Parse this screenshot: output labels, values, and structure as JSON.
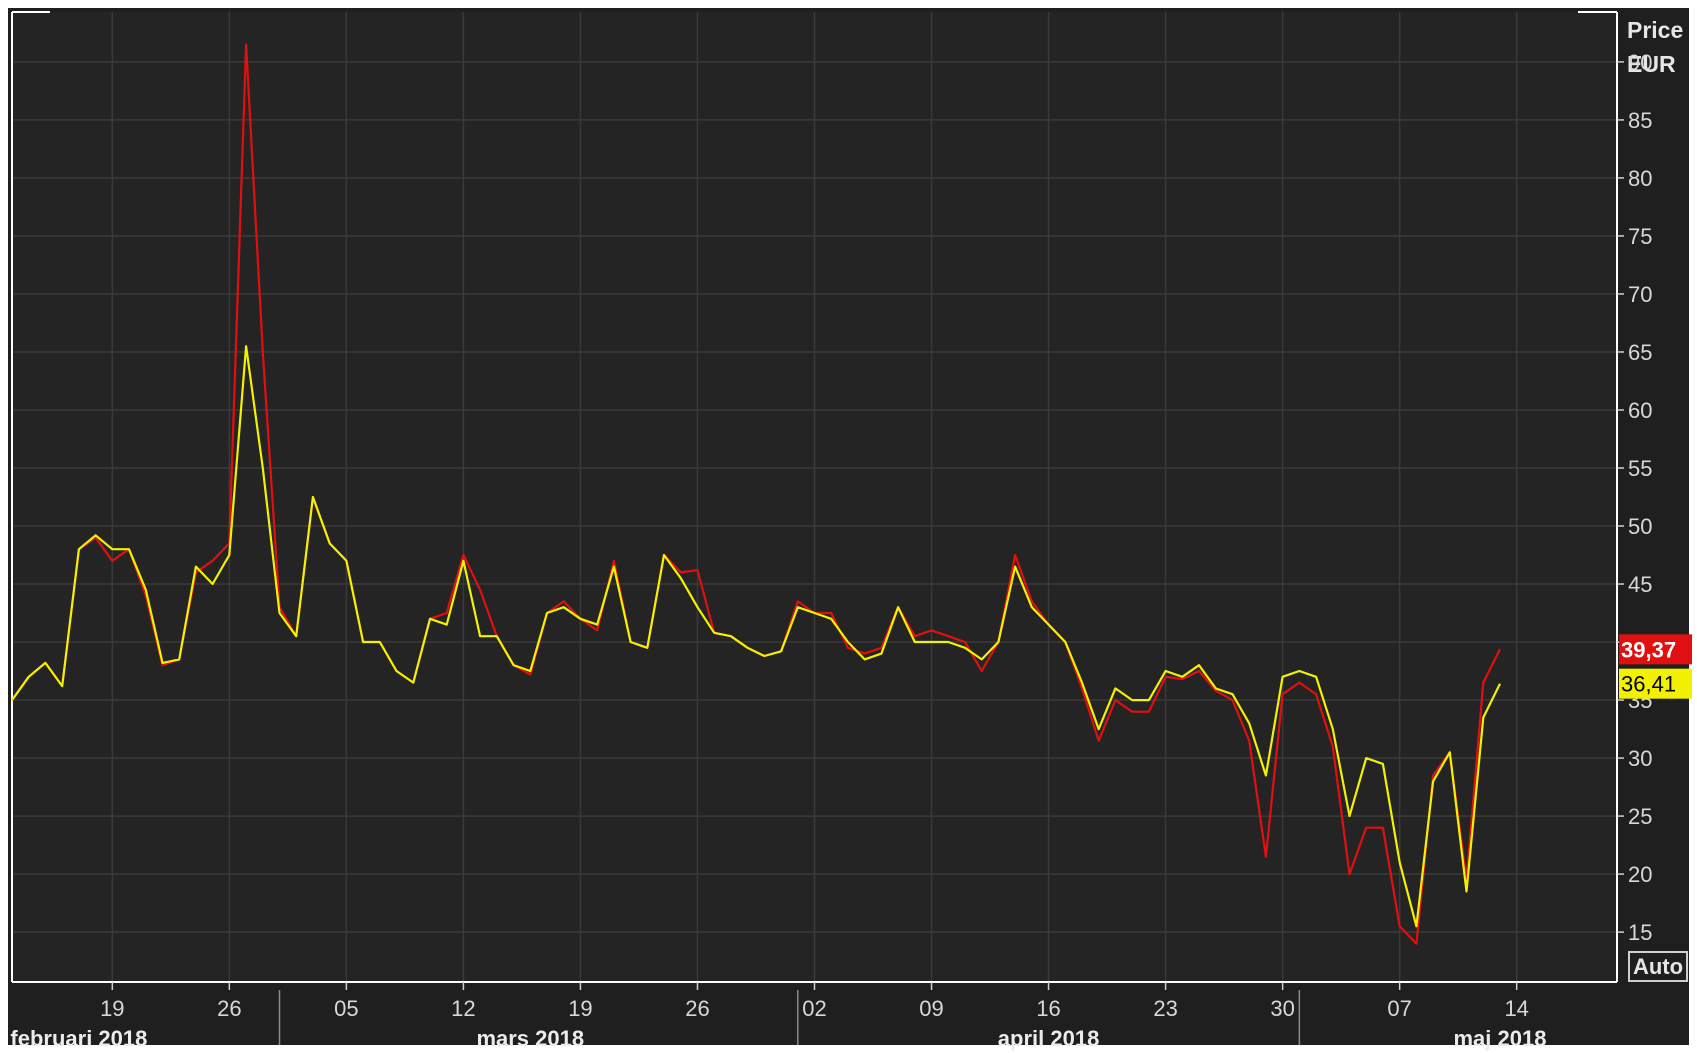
{
  "chart_data": {
    "type": "line",
    "title": "",
    "ylabel_line1": "Price",
    "ylabel_line2": "EUR",
    "ylim": [
      10.7,
      94.3
    ],
    "y_ticks": [
      15,
      20,
      25,
      30,
      35,
      40,
      45,
      50,
      55,
      60,
      65,
      70,
      75,
      80,
      85,
      90
    ],
    "x_day_ticks": [
      "19",
      "26",
      "05",
      "12",
      "19",
      "26",
      "02",
      "09",
      "16",
      "23",
      "30",
      "07",
      "14"
    ],
    "x_month_labels": [
      "februari 2018",
      "mars 2018",
      "april 2018",
      "maj 2018"
    ],
    "x_range": [
      "2018-02-13",
      "2018-05-20"
    ],
    "auto_label": "Auto",
    "grid": true,
    "series": [
      {
        "color": "#e01010",
        "last_label": "39,37",
        "points": [
          [
            "2018-02-13",
            35.0
          ],
          [
            "2018-02-14",
            37.0
          ],
          [
            "2018-02-15",
            38.2
          ],
          [
            "2018-02-16",
            36.2
          ],
          [
            "2018-02-17",
            48.0
          ],
          [
            "2018-02-18",
            49.0
          ],
          [
            "2018-02-19",
            47.0
          ],
          [
            "2018-02-20",
            48.0
          ],
          [
            "2018-02-21",
            44.0
          ],
          [
            "2018-02-22",
            38.0
          ],
          [
            "2018-02-23",
            38.5
          ],
          [
            "2018-02-24",
            46.0
          ],
          [
            "2018-02-25",
            47.0
          ],
          [
            "2018-02-26",
            48.5
          ],
          [
            "2018-02-27",
            91.5
          ],
          [
            "2018-02-28",
            65.0
          ],
          [
            "2018-03-01",
            43.0
          ],
          [
            "2018-03-02",
            40.5
          ],
          [
            "2018-03-03",
            52.5
          ],
          [
            "2018-03-04",
            48.5
          ],
          [
            "2018-03-05",
            47.0
          ],
          [
            "2018-03-06",
            40.0
          ],
          [
            "2018-03-07",
            40.0
          ],
          [
            "2018-03-08",
            37.5
          ],
          [
            "2018-03-09",
            36.5
          ],
          [
            "2018-03-10",
            42.0
          ],
          [
            "2018-03-11",
            42.5
          ],
          [
            "2018-03-12",
            47.5
          ],
          [
            "2018-03-13",
            44.5
          ],
          [
            "2018-03-14",
            40.5
          ],
          [
            "2018-03-15",
            38.0
          ],
          [
            "2018-03-16",
            37.2
          ],
          [
            "2018-03-17",
            42.5
          ],
          [
            "2018-03-18",
            43.5
          ],
          [
            "2018-03-19",
            42.0
          ],
          [
            "2018-03-20",
            41.0
          ],
          [
            "2018-03-21",
            47.0
          ],
          [
            "2018-03-22",
            40.0
          ],
          [
            "2018-03-23",
            39.5
          ],
          [
            "2018-03-24",
            47.5
          ],
          [
            "2018-03-25",
            46.0
          ],
          [
            "2018-03-26",
            46.2
          ],
          [
            "2018-03-27",
            40.8
          ],
          [
            "2018-03-28",
            40.5
          ],
          [
            "2018-03-29",
            39.5
          ],
          [
            "2018-03-30",
            38.8
          ],
          [
            "2018-03-31",
            39.2
          ],
          [
            "2018-04-01",
            43.5
          ],
          [
            "2018-04-02",
            42.5
          ],
          [
            "2018-04-03",
            42.5
          ],
          [
            "2018-04-04",
            39.5
          ],
          [
            "2018-04-05",
            39.0
          ],
          [
            "2018-04-06",
            39.5
          ],
          [
            "2018-04-07",
            43.0
          ],
          [
            "2018-04-08",
            40.5
          ],
          [
            "2018-04-09",
            41.0
          ],
          [
            "2018-04-10",
            40.5
          ],
          [
            "2018-04-11",
            40.0
          ],
          [
            "2018-04-12",
            37.5
          ],
          [
            "2018-04-13",
            40.0
          ],
          [
            "2018-04-14",
            47.5
          ],
          [
            "2018-04-15",
            43.5
          ],
          [
            "2018-04-16",
            41.5
          ],
          [
            "2018-04-17",
            40.0
          ],
          [
            "2018-04-18",
            36.0
          ],
          [
            "2018-04-19",
            31.5
          ],
          [
            "2018-04-20",
            35.0
          ],
          [
            "2018-04-21",
            34.0
          ],
          [
            "2018-04-22",
            34.0
          ],
          [
            "2018-04-23",
            37.0
          ],
          [
            "2018-04-24",
            36.8
          ],
          [
            "2018-04-25",
            37.5
          ],
          [
            "2018-04-26",
            35.8
          ],
          [
            "2018-04-27",
            35.0
          ],
          [
            "2018-04-28",
            31.5
          ],
          [
            "2018-04-29",
            21.5
          ],
          [
            "2018-04-30",
            35.5
          ],
          [
            "2018-05-01",
            36.5
          ],
          [
            "2018-05-02",
            35.5
          ],
          [
            "2018-05-03",
            31.0
          ],
          [
            "2018-05-04",
            20.0
          ],
          [
            "2018-05-05",
            24.0
          ],
          [
            "2018-05-06",
            24.0
          ],
          [
            "2018-05-07",
            15.5
          ],
          [
            "2018-05-08",
            14.0
          ],
          [
            "2018-05-09",
            28.5
          ],
          [
            "2018-05-10",
            30.5
          ],
          [
            "2018-05-11",
            19.5
          ],
          [
            "2018-05-12",
            36.5
          ],
          [
            "2018-05-13",
            39.37
          ]
        ]
      },
      {
        "color": "#f2f200",
        "last_label": "36,41",
        "points": [
          [
            "2018-02-13",
            35.0
          ],
          [
            "2018-02-14",
            37.0
          ],
          [
            "2018-02-15",
            38.2
          ],
          [
            "2018-02-16",
            36.2
          ],
          [
            "2018-02-17",
            48.0
          ],
          [
            "2018-02-18",
            49.2
          ],
          [
            "2018-02-19",
            48.0
          ],
          [
            "2018-02-20",
            48.0
          ],
          [
            "2018-02-21",
            44.5
          ],
          [
            "2018-02-22",
            38.2
          ],
          [
            "2018-02-23",
            38.5
          ],
          [
            "2018-02-24",
            46.5
          ],
          [
            "2018-02-25",
            45.0
          ],
          [
            "2018-02-26",
            47.5
          ],
          [
            "2018-02-27",
            65.5
          ],
          [
            "2018-02-28",
            55.0
          ],
          [
            "2018-03-01",
            42.5
          ],
          [
            "2018-03-02",
            40.5
          ],
          [
            "2018-03-03",
            52.5
          ],
          [
            "2018-03-04",
            48.5
          ],
          [
            "2018-03-05",
            47.0
          ],
          [
            "2018-03-06",
            40.0
          ],
          [
            "2018-03-07",
            40.0
          ],
          [
            "2018-03-08",
            37.5
          ],
          [
            "2018-03-09",
            36.5
          ],
          [
            "2018-03-10",
            42.0
          ],
          [
            "2018-03-11",
            41.5
          ],
          [
            "2018-03-12",
            47.0
          ],
          [
            "2018-03-13",
            40.5
          ],
          [
            "2018-03-14",
            40.5
          ],
          [
            "2018-03-15",
            38.0
          ],
          [
            "2018-03-16",
            37.5
          ],
          [
            "2018-03-17",
            42.5
          ],
          [
            "2018-03-18",
            43.0
          ],
          [
            "2018-03-19",
            42.0
          ],
          [
            "2018-03-20",
            41.5
          ],
          [
            "2018-03-21",
            46.5
          ],
          [
            "2018-03-22",
            40.0
          ],
          [
            "2018-03-23",
            39.5
          ],
          [
            "2018-03-24",
            47.5
          ],
          [
            "2018-03-25",
            45.5
          ],
          [
            "2018-03-26",
            43.0
          ],
          [
            "2018-03-27",
            40.8
          ],
          [
            "2018-03-28",
            40.5
          ],
          [
            "2018-03-29",
            39.5
          ],
          [
            "2018-03-30",
            38.8
          ],
          [
            "2018-03-31",
            39.2
          ],
          [
            "2018-04-01",
            43.0
          ],
          [
            "2018-04-02",
            42.5
          ],
          [
            "2018-04-03",
            42.0
          ],
          [
            "2018-04-04",
            40.0
          ],
          [
            "2018-04-05",
            38.5
          ],
          [
            "2018-04-06",
            39.0
          ],
          [
            "2018-04-07",
            43.0
          ],
          [
            "2018-04-08",
            40.0
          ],
          [
            "2018-04-09",
            40.0
          ],
          [
            "2018-04-10",
            40.0
          ],
          [
            "2018-04-11",
            39.5
          ],
          [
            "2018-04-12",
            38.5
          ],
          [
            "2018-04-13",
            40.0
          ],
          [
            "2018-04-14",
            46.5
          ],
          [
            "2018-04-15",
            43.0
          ],
          [
            "2018-04-16",
            41.5
          ],
          [
            "2018-04-17",
            40.0
          ],
          [
            "2018-04-18",
            36.5
          ],
          [
            "2018-04-19",
            32.5
          ],
          [
            "2018-04-20",
            36.0
          ],
          [
            "2018-04-21",
            35.0
          ],
          [
            "2018-04-22",
            35.0
          ],
          [
            "2018-04-23",
            37.5
          ],
          [
            "2018-04-24",
            37.0
          ],
          [
            "2018-04-25",
            38.0
          ],
          [
            "2018-04-26",
            36.0
          ],
          [
            "2018-04-27",
            35.5
          ],
          [
            "2018-04-28",
            33.0
          ],
          [
            "2018-04-29",
            28.5
          ],
          [
            "2018-04-30",
            37.0
          ],
          [
            "2018-05-01",
            37.5
          ],
          [
            "2018-05-02",
            37.0
          ],
          [
            "2018-05-03",
            32.5
          ],
          [
            "2018-05-04",
            25.0
          ],
          [
            "2018-05-05",
            30.0
          ],
          [
            "2018-05-06",
            29.5
          ],
          [
            "2018-05-07",
            21.0
          ],
          [
            "2018-05-08",
            15.5
          ],
          [
            "2018-05-09",
            28.0
          ],
          [
            "2018-05-10",
            30.5
          ],
          [
            "2018-05-11",
            18.5
          ],
          [
            "2018-05-12",
            33.5
          ],
          [
            "2018-05-13",
            36.41
          ]
        ]
      }
    ]
  }
}
